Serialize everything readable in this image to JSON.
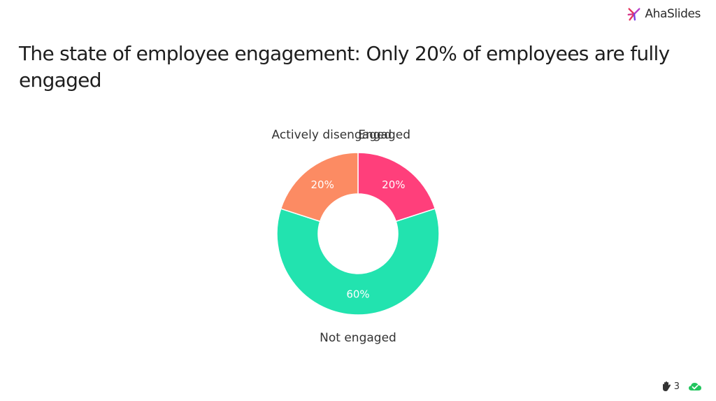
{
  "brand": {
    "name": "AhaSlides",
    "logo_icon": "ahaslides-logo-icon",
    "logo_colors": [
      "#e6355f",
      "#b73fc9",
      "#7b3fe4"
    ]
  },
  "slide": {
    "title": "The state of employee engagement: Only 20% of employees are fully engaged"
  },
  "chart_data": {
    "type": "pie",
    "donut": true,
    "categories": [
      "Engaged",
      "Not engaged",
      "Actively disengaged"
    ],
    "values": [
      20,
      60,
      20
    ],
    "value_labels": [
      "20%",
      "60%",
      "20%"
    ],
    "colors": [
      "#ff3f7b",
      "#22e3af",
      "#fc8b63"
    ],
    "value_label_color": "#ffffff",
    "category_label_color": "#333333",
    "title": "",
    "legend": "none"
  },
  "footer": {
    "participants_icon": "raised-hand-icon",
    "participants_count": "3",
    "status_icon": "cloud-check-icon",
    "status_color": "#22c55e"
  }
}
